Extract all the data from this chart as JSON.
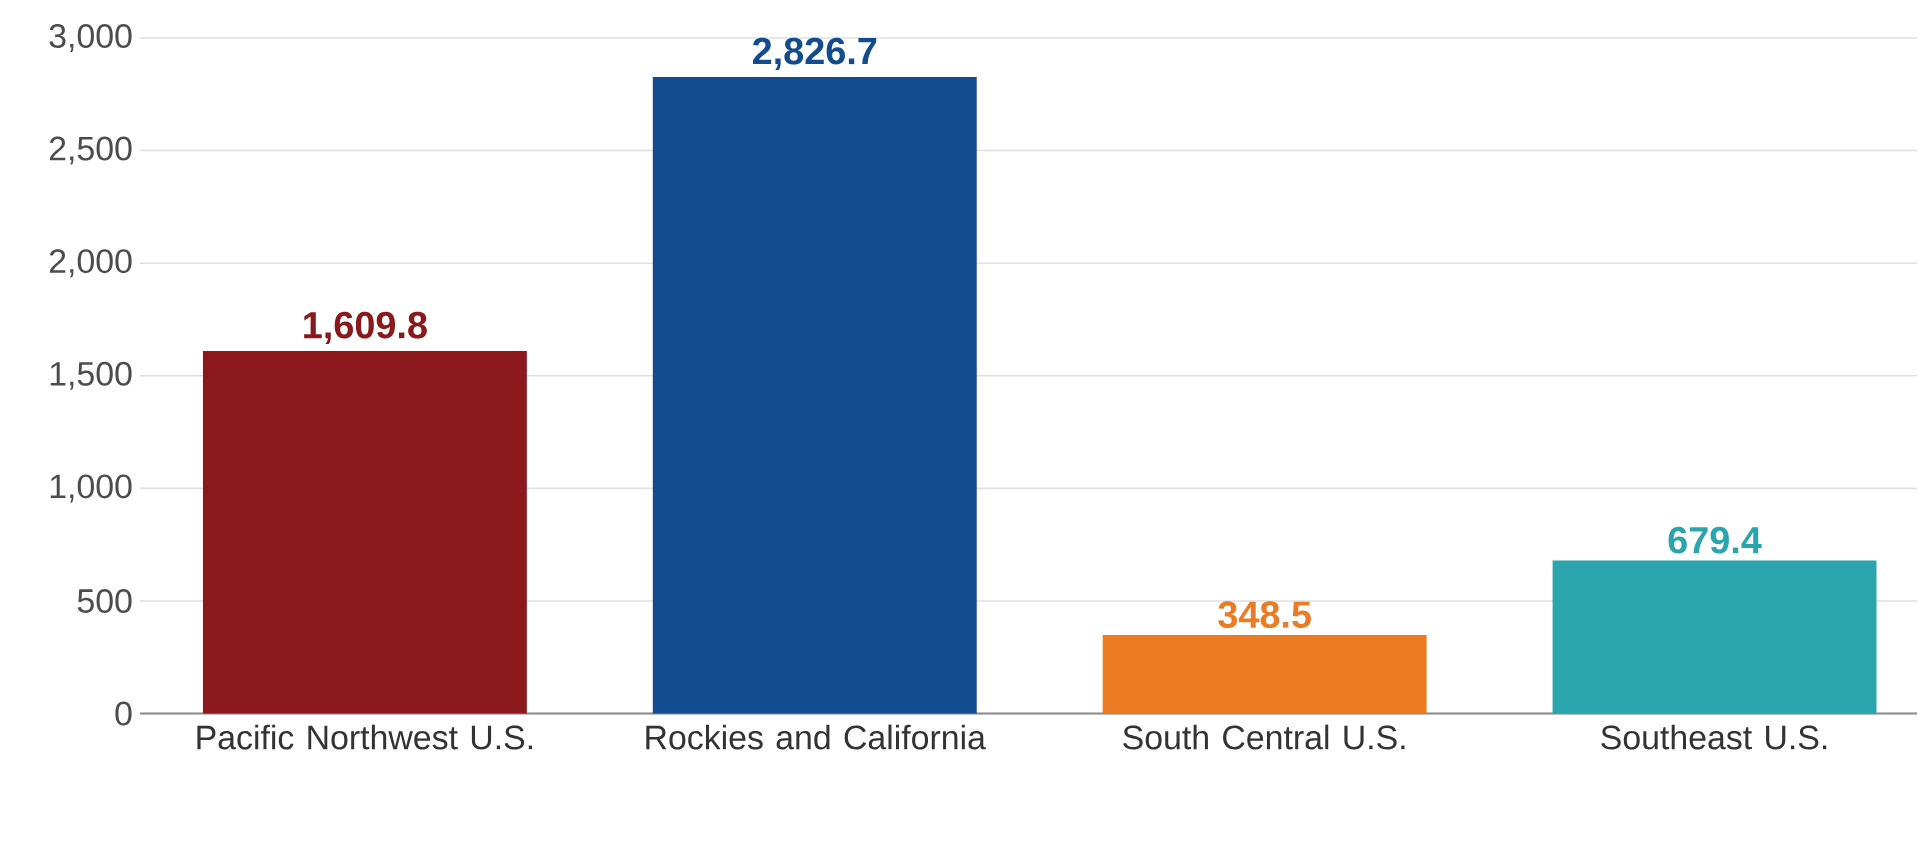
{
  "chart_data": {
    "type": "bar",
    "categories": [
      "Pacific Northwest U.S.",
      "Rockies and California",
      "South Central U.S.",
      "Southeast U.S."
    ],
    "values": [
      1609.8,
      2826.7,
      348.5,
      679.4
    ],
    "colors": [
      "#8b181c",
      "#124b8e",
      "#ec7c24",
      "#2aa5ad"
    ],
    "value_labels": [
      "1,609.8",
      "2,826.7",
      "348.5",
      "679.4"
    ],
    "ylim": [
      0,
      3000
    ],
    "yticks": [
      0,
      500,
      {
        "value": 1000,
        "label": "1,000"
      },
      {
        "value": 1500,
        "label": "1,500"
      },
      {
        "value": 2000,
        "label": "2,000"
      },
      {
        "value": 2500,
        "label": "2,500"
      },
      {
        "value": 3000,
        "label": "3,000"
      }
    ],
    "grid": "y"
  }
}
